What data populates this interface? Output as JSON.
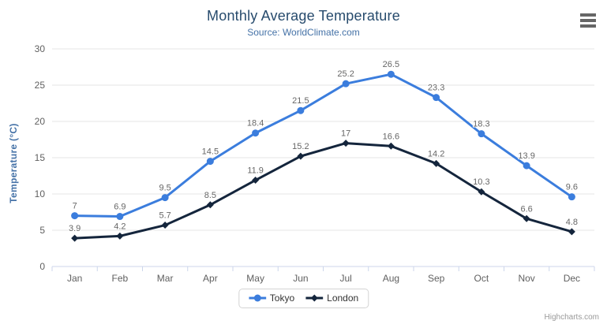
{
  "chart_data": {
    "type": "line",
    "title": "Monthly Average Temperature",
    "subtitle": "Source: WorldClimate.com",
    "categories": [
      "Jan",
      "Feb",
      "Mar",
      "Apr",
      "May",
      "Jun",
      "Jul",
      "Aug",
      "Sep",
      "Oct",
      "Nov",
      "Dec"
    ],
    "series": [
      {
        "name": "Tokyo",
        "color": "#3b7ddd",
        "marker": "circle",
        "values": [
          7,
          6.9,
          9.5,
          14.5,
          18.4,
          21.5,
          25.2,
          26.5,
          23.3,
          18.3,
          13.9,
          9.6
        ],
        "labels": [
          "7",
          "6.9",
          "9.5",
          "14.5",
          "18.4",
          "21.5",
          "25.2",
          "26.5",
          "23.3",
          "18.3",
          "13.9",
          "9.6"
        ]
      },
      {
        "name": "London",
        "color": "#14253c",
        "marker": "diamond",
        "values": [
          3.9,
          4.2,
          5.7,
          8.5,
          11.9,
          15.2,
          17,
          16.6,
          14.2,
          10.3,
          6.6,
          4.8
        ],
        "labels": [
          "3.9",
          "4.2",
          "5.7",
          "8.5",
          "11.9",
          "15.2",
          "17",
          "16.6",
          "14.2",
          "10.3",
          "6.6",
          "4.8"
        ]
      }
    ],
    "xlabel": "",
    "ylabel": "Temperature (°C)",
    "ylim": [
      0,
      30
    ],
    "ytick_interval": 5,
    "grid": "on",
    "legend_position": "bottom"
  },
  "ui": {
    "credits": "Highcharts.com",
    "icons": {
      "context_menu": "hamburger-menu-icon"
    },
    "colors": {
      "title": "#274b6d",
      "subtitle": "#4572a7",
      "axis_title": "#4572a7",
      "grid_line": "#e6e6e6",
      "axis_line": "#ccd6eb",
      "tick_label": "#606060",
      "data_label": "#666666",
      "legend_text": "#333333",
      "credits": "#999999"
    }
  }
}
